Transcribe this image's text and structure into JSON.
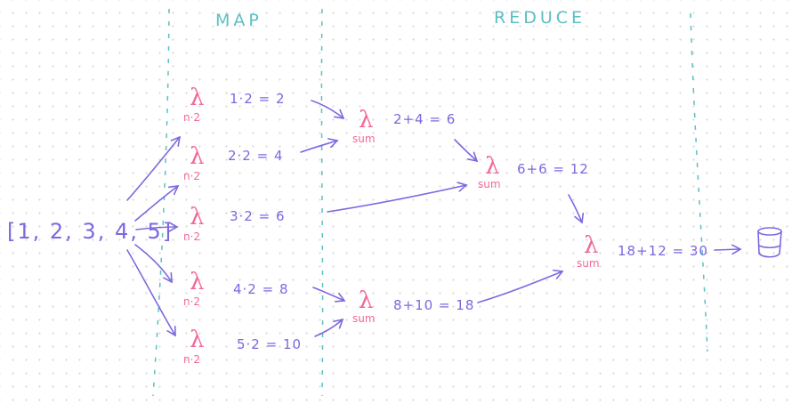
{
  "headers": {
    "map": "MAP",
    "reduce": "REDUCE"
  },
  "input_array": "[1, 2, 3, 4, 5]",
  "map_lambda": {
    "symbol": "λ",
    "label": "n·2"
  },
  "map_steps": [
    "1·2 = 2",
    "2·2 = 4",
    "3·2 = 6",
    "4·2 = 8",
    "5·2 = 10"
  ],
  "reduce_lambda": {
    "symbol": "λ",
    "label": "sum"
  },
  "reduce_steps": [
    "2+4 = 6",
    "6+6 = 12",
    "8+10 = 18",
    "18+12 = 30"
  ],
  "output_icon": "bucket-icon",
  "colors": {
    "ink": "#7d68e0",
    "lambda": "#f2679b",
    "separator": "#5bbfc2"
  }
}
